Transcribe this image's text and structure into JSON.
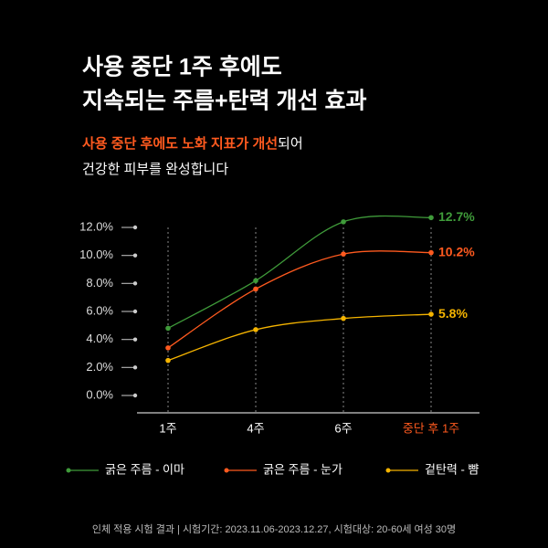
{
  "chart_data": {
    "type": "line",
    "title": [
      "사용 중단 1주 후에도",
      "지속되는 주름+탄력 개선 효과"
    ],
    "subtitle": {
      "highlight": "사용 중단 후에도 노화 지표가 개선",
      "rest": "되어",
      "line2": "건강한 피부를 완성합니다"
    },
    "categories": [
      "1주",
      "4주",
      "6주",
      "중단 후 1주"
    ],
    "ylim": [
      0,
      12
    ],
    "yticks": [
      {
        "value": 0,
        "label": "0.0%"
      },
      {
        "value": 2,
        "label": "2.0%"
      },
      {
        "value": 4,
        "label": "4.0%"
      },
      {
        "value": 6,
        "label": "6.0%"
      },
      {
        "value": 8,
        "label": "8.0%"
      },
      {
        "value": 10,
        "label": "10.0%"
      },
      {
        "value": 12,
        "label": "12.0%"
      }
    ],
    "series": [
      {
        "name": "굵은 주름 - 이마",
        "color": "#3f9b3a",
        "values": [
          4.8,
          8.2,
          12.4,
          12.7
        ],
        "value_labels": [
          null,
          null,
          null,
          "12.7%"
        ]
      },
      {
        "name": "굵은 주름 - 눈가",
        "color": "#ff5a1f",
        "values": [
          3.4,
          7.6,
          10.1,
          10.2
        ],
        "value_labels": [
          null,
          null,
          null,
          "10.2%"
        ]
      },
      {
        "name": "겉탄력 - 뺨",
        "color": "#f5b400",
        "values": [
          2.5,
          4.7,
          5.5,
          5.8
        ],
        "value_labels": [
          null,
          null,
          null,
          "5.8%"
        ]
      }
    ],
    "footnote": "인체 적용 시험 결과 | 시험기간: 2023.11.06-2023.12.27, 시험대상: 20-60세 여성 30명"
  }
}
